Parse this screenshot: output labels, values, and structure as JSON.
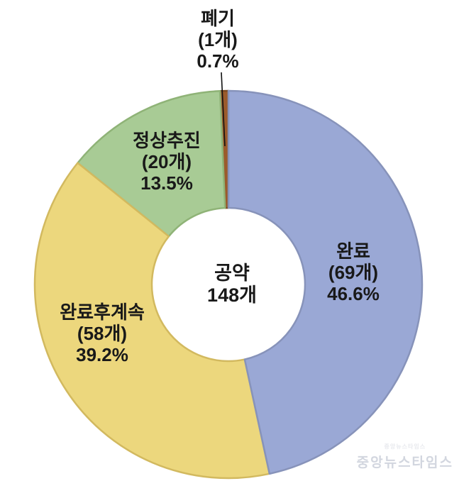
{
  "chart_data": {
    "type": "pie",
    "subtype": "donut",
    "direction": "clockwise",
    "start_angle_deg": 0,
    "categories": [
      "완료",
      "완료후계속",
      "정상추진",
      "폐기"
    ],
    "values": [
      69,
      58,
      20,
      1
    ],
    "percents": [
      46.6,
      39.2,
      13.5,
      0.7
    ],
    "total": 148,
    "center_text": "공약 148개",
    "unit": "개",
    "colors": [
      "#9aa8d5",
      "#ecd77d",
      "#a8cb95",
      "#9b5b2b"
    ],
    "stroke_colors": [
      "#8793ba",
      "#d2b95f",
      "#8fb377",
      "#7c4920"
    ],
    "donut_hole_ratio": 0.4,
    "legend": "none",
    "labels_on_slices": true,
    "background": "#ffffff"
  },
  "slices": [
    {
      "name": "완료",
      "count": "(69개)",
      "percent": "46.6%"
    },
    {
      "name": "완료후계속",
      "count": "(58개)",
      "percent": "39.2%"
    },
    {
      "name": "정상추진",
      "count": "(20개)",
      "percent": "13.5%"
    },
    {
      "name": "폐기",
      "count": "(1개)",
      "percent": "0.7%"
    }
  ],
  "center_label": {
    "line1": "공약",
    "line2": "148개"
  },
  "watermark": {
    "brand": "중앙뉴스타임스"
  }
}
